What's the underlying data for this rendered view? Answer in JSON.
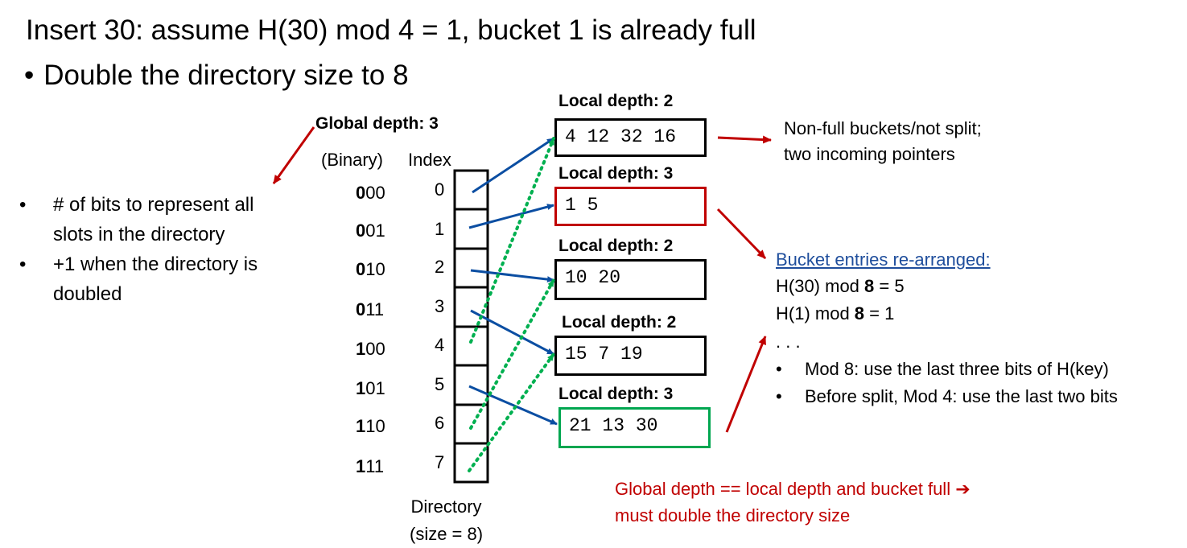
{
  "title": "Insert 30: assume H(30) mod 4 = 1, bucket 1 is already full",
  "subbullet": {
    "bullet": "•",
    "text": "Double the directory size to 8"
  },
  "global_depth": "Global depth: 3",
  "headers": {
    "binary": "(Binary)",
    "index": "Index"
  },
  "directory": {
    "rows": [
      {
        "bin_bold": "0",
        "bin_rest": "00",
        "index": "0"
      },
      {
        "bin_bold": "0",
        "bin_rest": "01",
        "index": "1"
      },
      {
        "bin_bold": "0",
        "bin_rest": "10",
        "index": "2"
      },
      {
        "bin_bold": "0",
        "bin_rest": "11",
        "index": "3"
      },
      {
        "bin_bold": "1",
        "bin_rest": "00",
        "index": "4"
      },
      {
        "bin_bold": "1",
        "bin_rest": "01",
        "index": "5"
      },
      {
        "bin_bold": "1",
        "bin_rest": "10",
        "index": "6"
      },
      {
        "bin_bold": "1",
        "bin_rest": "11",
        "index": "7"
      }
    ],
    "caption_line1": "Directory",
    "caption_line2": "(size = 8)"
  },
  "buckets": [
    {
      "local_depth": "Local depth: 2",
      "entries": "4 12 32 16",
      "border": "black"
    },
    {
      "local_depth": "Local depth: 3",
      "entries": "1 5",
      "border": "#c00000"
    },
    {
      "local_depth": "Local depth: 2",
      "entries": "10 20",
      "border": "black"
    },
    {
      "local_depth": "Local depth: 2",
      "entries": "15 7 19",
      "border": "black"
    },
    {
      "local_depth": "Local depth: 3",
      "entries": "21 13 30",
      "border": "#00a650"
    }
  ],
  "left_notes": [
    {
      "bullet": "•",
      "lines": [
        "# of bits to represent all",
        "slots in the directory"
      ]
    },
    {
      "bullet": "•",
      "lines": [
        "+1 when the directory is",
        "doubled"
      ]
    }
  ],
  "nonfull_note": {
    "line1": "Non-full buckets/not split;",
    "line2": "two incoming pointers"
  },
  "rearranged": {
    "title": "Bucket entries re-arranged:",
    "line1_pre": "H(30) mod ",
    "line1_bold": "8",
    "line1_post": " = 5",
    "line2_pre": "H(1) mod ",
    "line2_bold": "8",
    "line2_post": " = 1",
    "dots": ". . .",
    "bullets": [
      {
        "bullet": "•",
        "text": "Mod 8: use the last three bits of H(key)"
      },
      {
        "bullet": "•",
        "text": "Before split, Mod 4: use the last two bits"
      }
    ]
  },
  "warning": {
    "line1": "Global depth == local depth and bucket full ➔",
    "line2": "must double the directory size"
  },
  "colors": {
    "arrow_blue": "#0b4ea2",
    "arrow_green": "#00b050",
    "accent_red": "#c00000",
    "link_blue": "#1f4e9c"
  }
}
